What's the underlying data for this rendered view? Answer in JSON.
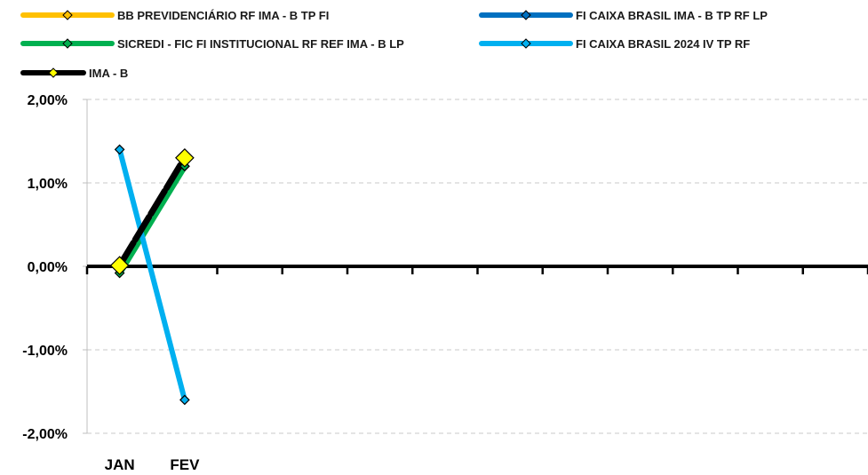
{
  "chart_data": {
    "type": "line",
    "title": "",
    "xlabel": "",
    "ylabel": "",
    "categories": [
      "JAN",
      "FEV"
    ],
    "x_slots": 12,
    "ylim": [
      -2,
      2
    ],
    "y_ticks": [
      2,
      1,
      0,
      -1,
      -2
    ],
    "y_tick_labels": [
      "2,00%",
      "1,00%",
      "0,00%",
      "-1,00%",
      "-2,00%"
    ],
    "grid": true,
    "legend_position": "top",
    "series": [
      {
        "name": "BB PREVIDENCIÁRIO RF IMA - B TP FI",
        "color": "#ffc000",
        "values": [
          0.0,
          1.2
        ]
      },
      {
        "name": "FI CAIXA BRASIL IMA - B TP RF LP",
        "color": "#0070c0",
        "values": [
          0.0,
          1.2
        ]
      },
      {
        "name": "SICREDI - FIC FI INSTITUCIONAL RF REF IMA - B LP",
        "color": "#00b050",
        "values": [
          -0.08,
          1.2
        ]
      },
      {
        "name": "FI CAIXA BRASIL 2024 IV TP RF",
        "color": "#00b0f0",
        "values": [
          1.4,
          -1.6
        ]
      },
      {
        "name": "IMA - B",
        "color": "#000000",
        "values": [
          0.01,
          1.3
        ]
      }
    ]
  }
}
